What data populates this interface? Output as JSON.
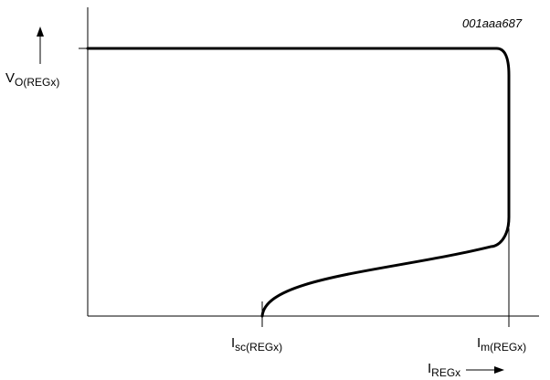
{
  "figure_code": "001aaa687",
  "chart_data": {
    "type": "line",
    "title": "",
    "xlabel": {
      "main": "I",
      "sub": "REGx"
    },
    "ylabel": {
      "main": "V",
      "sub": "O(REGx)"
    },
    "x_ticks": [
      {
        "main": "I",
        "sub": "sc(REGx)"
      },
      {
        "main": "I",
        "sub": "m(REGx)"
      }
    ],
    "grid": false,
    "legend": "none",
    "series": [
      {
        "description_points": [
          {
            "x": 0.0,
            "y": 1.0
          },
          {
            "x": 0.95,
            "y": 1.0
          },
          {
            "x": 1.0,
            "y": 0.9
          },
          {
            "x": 1.0,
            "y": 0.37
          },
          {
            "x": 0.93,
            "y": 0.26
          },
          {
            "x": 0.3,
            "y": 0.12
          },
          {
            "x": 0.0,
            "y": 0.0
          }
        ]
      }
    ],
    "colors": {
      "axis": "#000000",
      "curve": "#000000"
    }
  }
}
